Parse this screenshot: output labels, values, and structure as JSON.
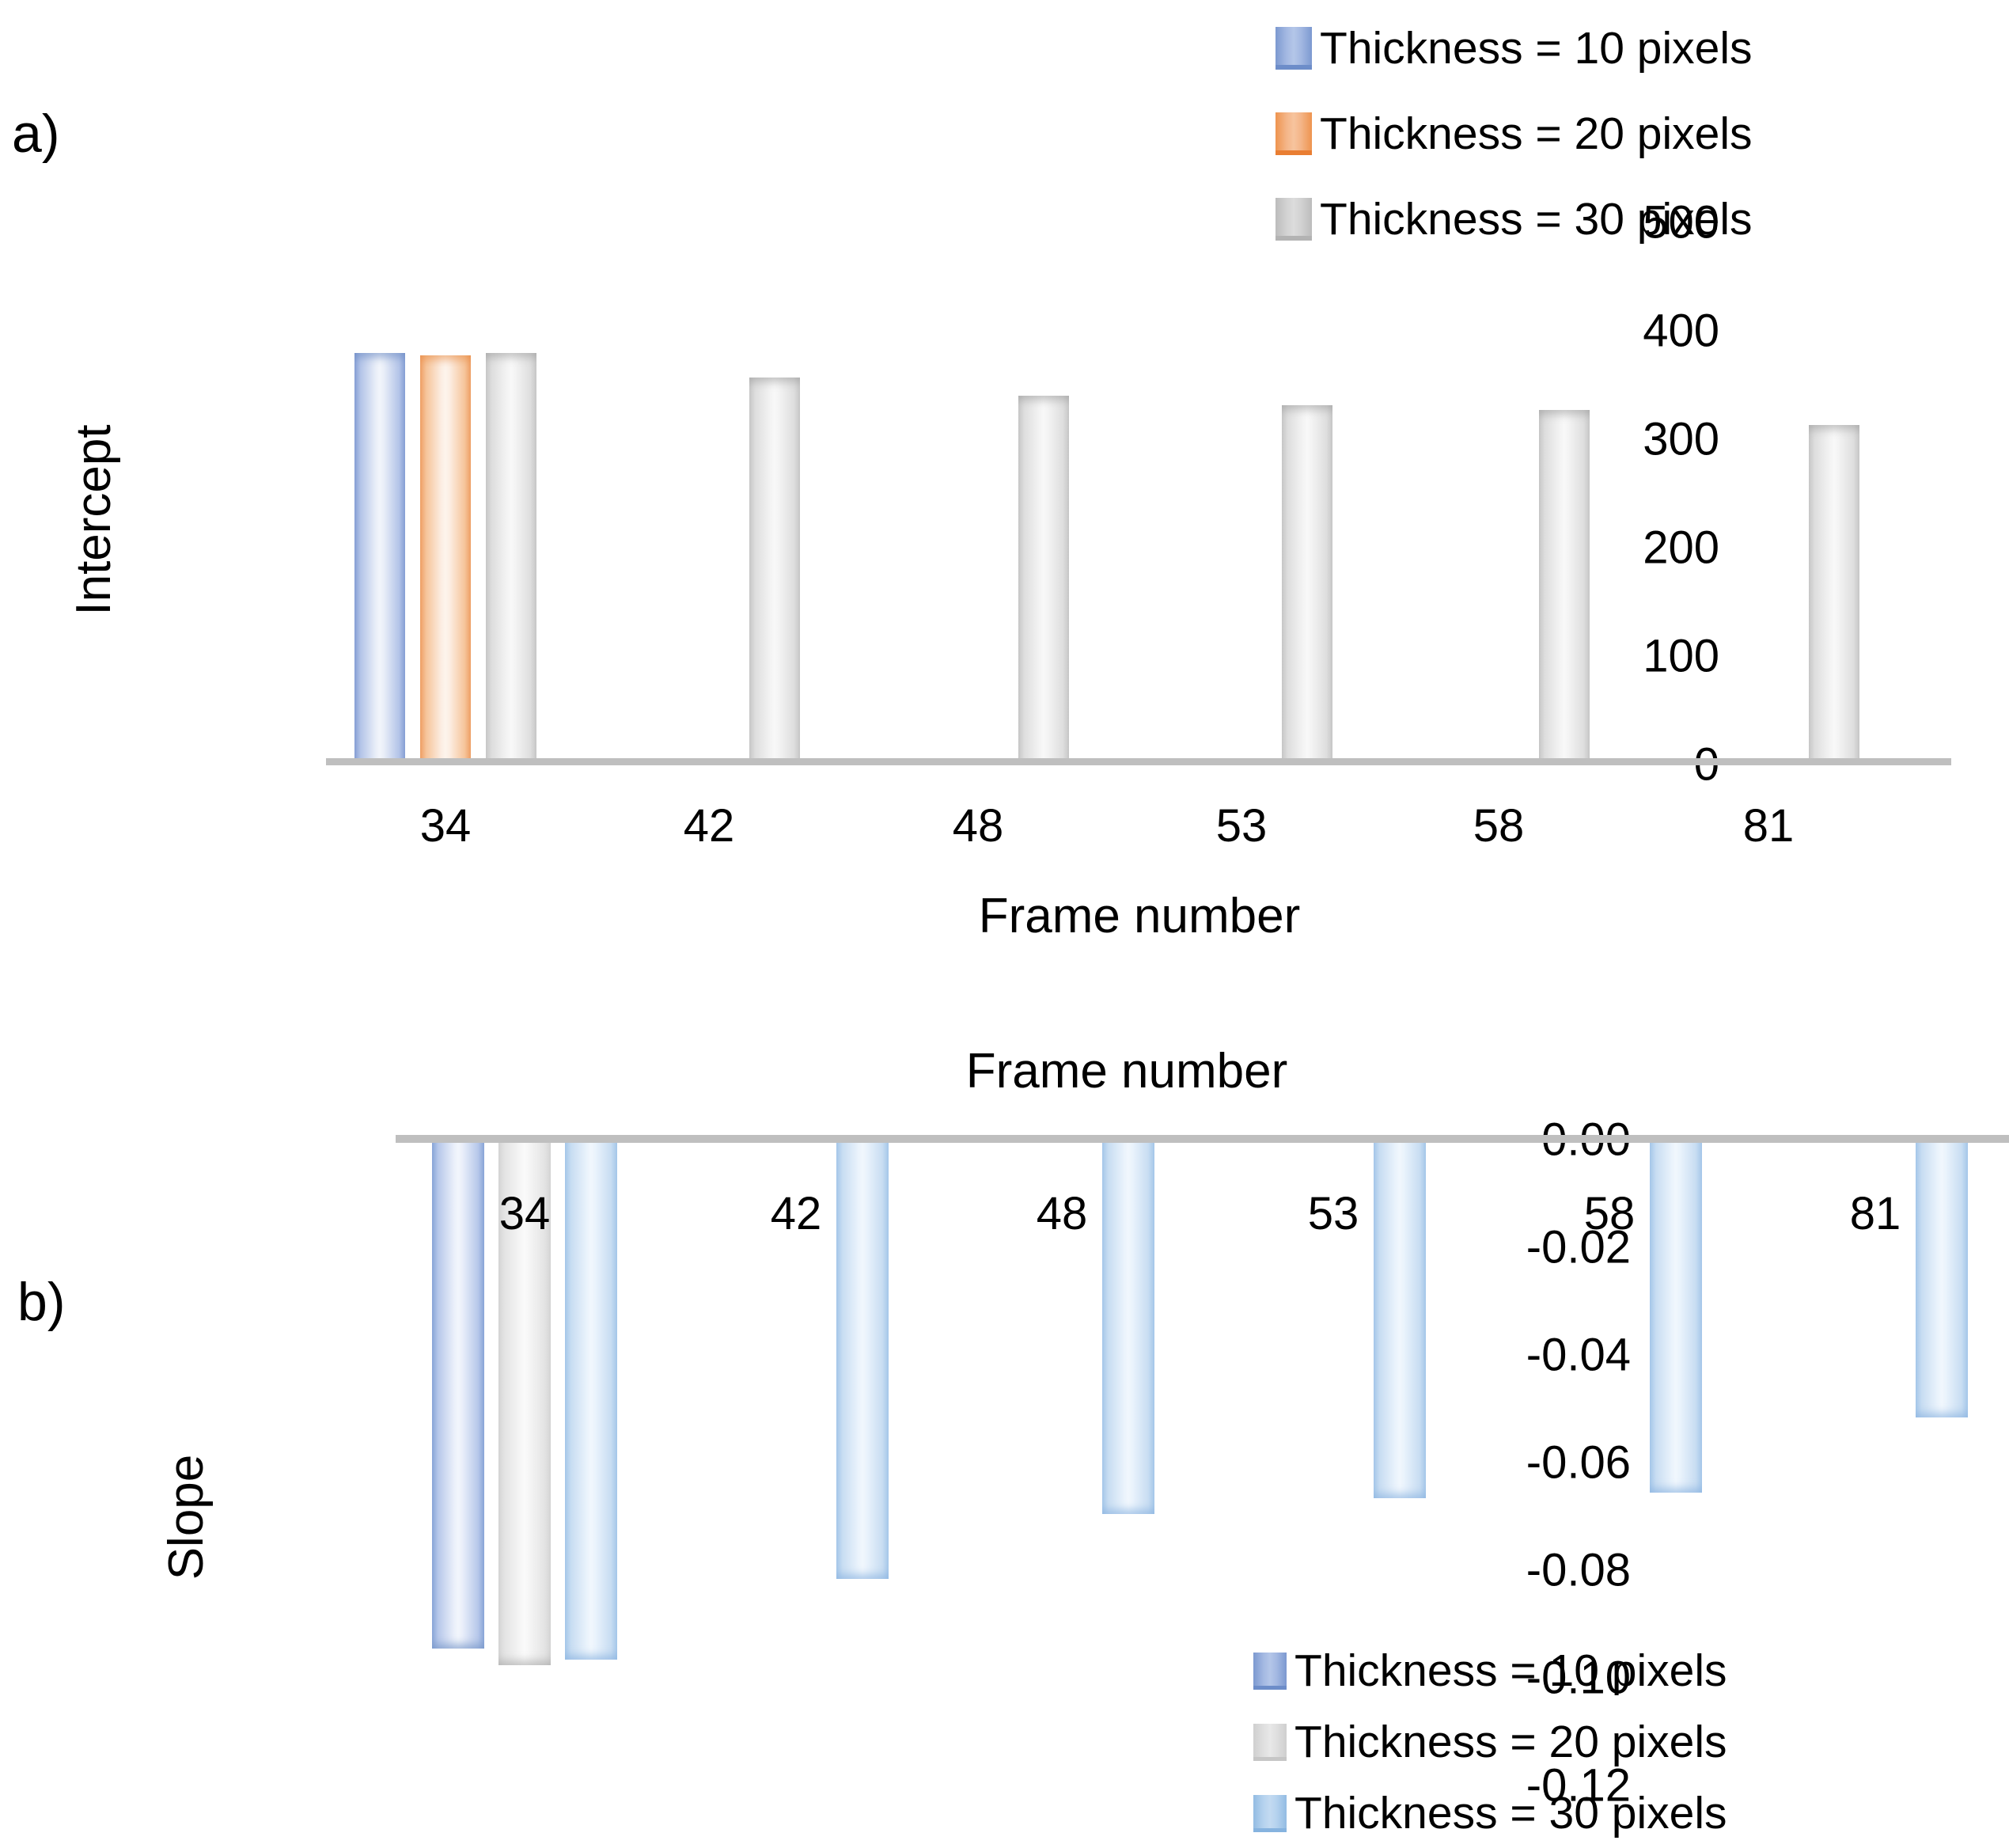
{
  "figure_title": "",
  "chart_data": [
    {
      "type": "bar",
      "panel": "a",
      "panel_label": "a)",
      "xlabel": "Frame number",
      "ylabel": "Intercept",
      "categories": [
        "34",
        "42",
        "48",
        "53",
        "58",
        "81"
      ],
      "ylim": [
        0,
        500
      ],
      "y_ticks": [
        "0",
        "100",
        "200",
        "300",
        "400",
        "500"
      ],
      "grid": false,
      "legend_position": "top-right",
      "legend": [
        {
          "label": "Thickness = 10 pixels",
          "color": "#8FAADC"
        },
        {
          "label": "Thickness  = 20 pixels",
          "color": "#F4B183"
        },
        {
          "label": "Thickness = 30 pixels",
          "color": "#C9C9C9"
        }
      ],
      "series": [
        {
          "name": "Thickness = 10 pixels",
          "color": "#8FAADC",
          "values": [
            385,
            null,
            null,
            null,
            null,
            null
          ]
        },
        {
          "name": "Thickness  = 20 pixels",
          "color": "#F4B183",
          "values": [
            383,
            null,
            null,
            null,
            null,
            null
          ]
        },
        {
          "name": "Thickness = 30 pixels",
          "color": "#C9C9C9",
          "values": [
            385,
            362,
            345,
            336,
            331,
            317
          ]
        }
      ]
    },
    {
      "type": "bar",
      "panel": "b",
      "panel_label": "b)",
      "xlabel": "Frame number",
      "ylabel": "Slope",
      "categories": [
        "34",
        "42",
        "48",
        "53",
        "58",
        "81"
      ],
      "ylim": [
        -0.12,
        0
      ],
      "y_ticks": [
        "0.00",
        "-0.02",
        "-0.04",
        "-0.06",
        "-0.08",
        "-0.10",
        "-0.12"
      ],
      "grid": false,
      "legend_position": "bottom-right",
      "legend": [
        {
          "label": "Thickness  = 10 pixels",
          "color": "#8FAADC"
        },
        {
          "label": "Thickness = 20 pixels",
          "color": "#D9D9D9"
        },
        {
          "label": "Thickness = 30 pixels",
          "color": "#9DC3E6"
        }
      ],
      "series": [
        {
          "name": "Thickness  = 10 pixels",
          "color": "#8FAADC",
          "values": [
            -0.094,
            null,
            null,
            null,
            null,
            null
          ]
        },
        {
          "name": "Thickness = 20 pixels",
          "color": "#D9D9D9",
          "values": [
            -0.097,
            null,
            null,
            null,
            null,
            null
          ]
        },
        {
          "name": "Thickness = 30 pixels",
          "color": "#9DC3E6",
          "values": [
            -0.096,
            -0.081,
            -0.069,
            -0.066,
            -0.065,
            -0.051
          ]
        }
      ]
    }
  ]
}
